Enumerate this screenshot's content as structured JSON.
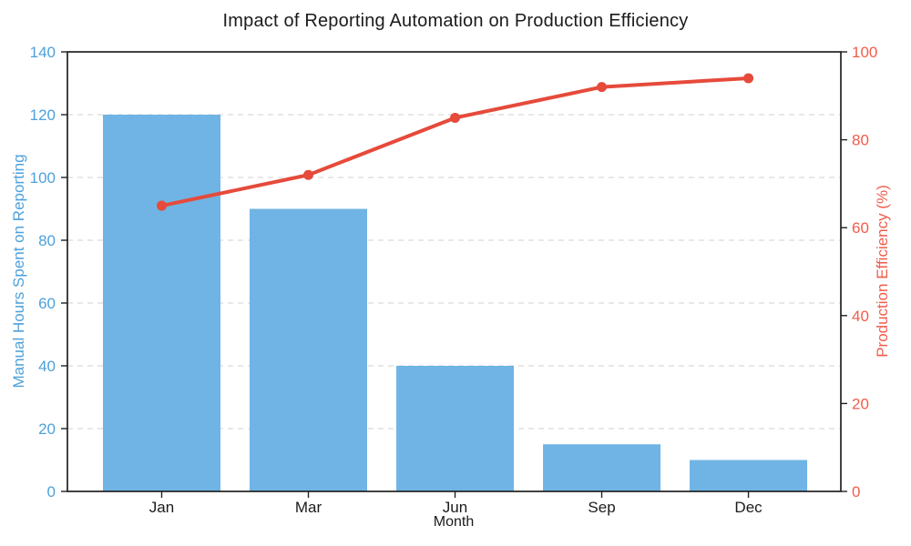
{
  "chart_data": {
    "type": "combo-bar-line",
    "title": "Impact of Reporting Automation on Production Efficiency",
    "xlabel": "Month",
    "categories": [
      "Jan",
      "Mar",
      "Jun",
      "Sep",
      "Dec"
    ],
    "axes": {
      "left": {
        "label": "Manual Hours Spent on Reporting",
        "min": 0,
        "max": 140,
        "ticks": [
          0,
          20,
          40,
          60,
          80,
          100,
          120,
          140
        ],
        "color": "#4DA1DC"
      },
      "right": {
        "label": "Production Efficiency (%)",
        "min": 0,
        "max": 100,
        "ticks": [
          0,
          20,
          40,
          60,
          80,
          100
        ],
        "color": "#F05C4B"
      }
    },
    "series": [
      {
        "name": "Manual Hours Spent on Reporting",
        "type": "bar",
        "axis": "left",
        "color": "#6FB4E4",
        "values": [
          120,
          90,
          40,
          15,
          10
        ]
      },
      {
        "name": "Production Efficiency (%)",
        "type": "line",
        "axis": "right",
        "color": "#E64A3B",
        "marker": "circle",
        "values": [
          65,
          72,
          85,
          92,
          94
        ]
      }
    ],
    "grid": {
      "show": true,
      "style": "dashed",
      "color": "#D9D9D9",
      "orientation": "horizontal"
    },
    "legend": {
      "show": false
    },
    "frame_color": "#222222",
    "tick_label_color_x": "#1b1b1b"
  }
}
